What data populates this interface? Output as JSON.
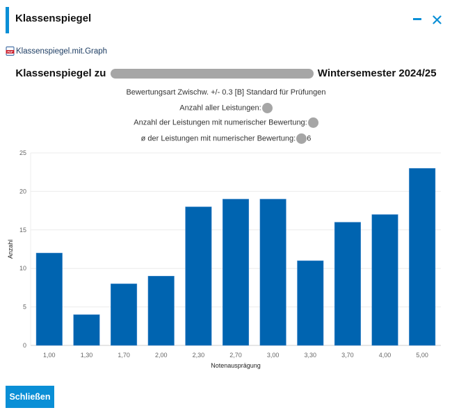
{
  "dialog": {
    "title": "Klassenspiegel",
    "minimize_icon": "minimize-icon",
    "close_icon": "close-icon",
    "accent_color": "#0a8fd6"
  },
  "pdf_link": {
    "icon": "pdf-file-icon",
    "label": "Klassenspiegel.mit.Graph"
  },
  "report": {
    "title_prefix": "Klassenspiegel zu",
    "title_suffix": "Wintersemester 2024/25",
    "grading_type": "Bewertungsart Zwischw. +/- 0.3 [B] Standard für Prüfungen",
    "count_all_label": "Anzahl aller Leistungen:",
    "count_numeric_label": "Anzahl der Leistungen mit numerischer Bewertung:",
    "average_label": "ø der Leistungen mit numerischer Bewertung:",
    "average_visible_digit": "6"
  },
  "chart_data": {
    "type": "bar",
    "title": "",
    "xlabel": "Notenausprägung",
    "ylabel": "Anzahl",
    "categories": [
      "1,00",
      "1,30",
      "1,70",
      "2,00",
      "2,30",
      "2,70",
      "3,00",
      "3,30",
      "3,70",
      "4,00",
      "5,00"
    ],
    "values": [
      12,
      4,
      8,
      9,
      18,
      19,
      19,
      11,
      16,
      17,
      23
    ],
    "ylim": [
      0,
      25
    ],
    "yticks": [
      0,
      5,
      10,
      15,
      20,
      25
    ],
    "grid": true,
    "legend": "none",
    "bar_color": "#0064b0"
  },
  "footer": {
    "close_label": "Schließen"
  }
}
